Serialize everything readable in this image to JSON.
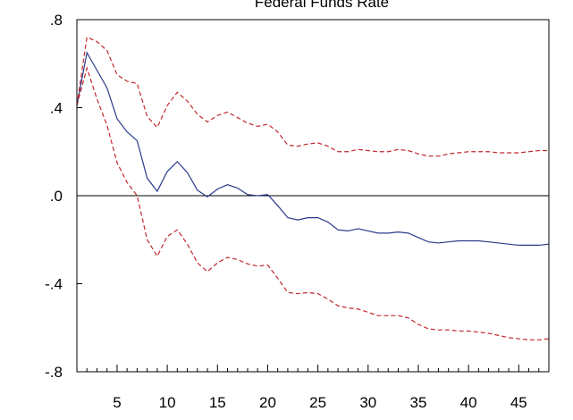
{
  "chart_data": {
    "type": "line",
    "title": "Federal Funds Rate",
    "xlabel": "",
    "ylabel": "",
    "xlim": [
      1,
      48
    ],
    "ylim": [
      -0.8,
      0.8
    ],
    "x_ticks": [
      5,
      10,
      15,
      20,
      25,
      30,
      35,
      40,
      45
    ],
    "x_tick_labels": [
      "5",
      "10",
      "15",
      "20",
      "25",
      "30",
      "35",
      "40",
      "45"
    ],
    "y_ticks": [
      0.8,
      0.4,
      0.0,
      -0.4,
      -0.8
    ],
    "y_tick_labels": [
      ".8",
      ".4",
      ".0",
      "-.4",
      "-.8"
    ],
    "zero_line": true,
    "grid": false,
    "x": [
      1,
      2,
      3,
      4,
      5,
      6,
      7,
      8,
      9,
      10,
      11,
      12,
      13,
      14,
      15,
      16,
      17,
      18,
      19,
      20,
      21,
      22,
      23,
      24,
      25,
      26,
      27,
      28,
      29,
      30,
      31,
      32,
      33,
      34,
      35,
      36,
      37,
      38,
      39,
      40,
      41,
      42,
      43,
      44,
      45,
      46,
      47,
      48
    ],
    "series": [
      {
        "role": "estimate",
        "color": "#2b3a8c",
        "style": "solid",
        "values": [
          0.41,
          0.65,
          0.57,
          0.49,
          0.35,
          0.29,
          0.25,
          0.08,
          0.02,
          0.11,
          0.155,
          0.105,
          0.025,
          -0.005,
          0.03,
          0.05,
          0.035,
          0.005,
          0.0,
          0.005,
          -0.045,
          -0.1,
          -0.11,
          -0.1,
          -0.1,
          -0.12,
          -0.155,
          -0.16,
          -0.15,
          -0.16,
          -0.17,
          -0.17,
          -0.165,
          -0.17,
          -0.19,
          -0.21,
          -0.215,
          -0.21,
          -0.205,
          -0.205,
          -0.205,
          -0.21,
          -0.215,
          -0.22,
          -0.225,
          -0.225,
          -0.225,
          -0.22
        ]
      },
      {
        "role": "upper-band",
        "color": "#c0282d",
        "style": "dashed",
        "values": [
          0.41,
          0.72,
          0.7,
          0.66,
          0.55,
          0.52,
          0.51,
          0.36,
          0.31,
          0.41,
          0.47,
          0.43,
          0.37,
          0.335,
          0.365,
          0.38,
          0.355,
          0.33,
          0.315,
          0.325,
          0.29,
          0.23,
          0.225,
          0.235,
          0.24,
          0.225,
          0.2,
          0.2,
          0.21,
          0.205,
          0.2,
          0.2,
          0.21,
          0.205,
          0.19,
          0.18,
          0.18,
          0.19,
          0.195,
          0.2,
          0.2,
          0.2,
          0.195,
          0.195,
          0.195,
          0.2,
          0.205,
          0.205
        ]
      },
      {
        "role": "lower-band",
        "color": "#c0282d",
        "style": "dashed",
        "values": [
          0.41,
          0.58,
          0.44,
          0.32,
          0.15,
          0.06,
          0.0,
          -0.2,
          -0.275,
          -0.185,
          -0.155,
          -0.22,
          -0.305,
          -0.345,
          -0.305,
          -0.28,
          -0.29,
          -0.31,
          -0.32,
          -0.315,
          -0.375,
          -0.44,
          -0.445,
          -0.44,
          -0.445,
          -0.47,
          -0.5,
          -0.51,
          -0.515,
          -0.53,
          -0.545,
          -0.545,
          -0.545,
          -0.555,
          -0.585,
          -0.605,
          -0.61,
          -0.61,
          -0.615,
          -0.615,
          -0.62,
          -0.625,
          -0.635,
          -0.645,
          -0.65,
          -0.655,
          -0.655,
          -0.65
        ]
      }
    ]
  }
}
